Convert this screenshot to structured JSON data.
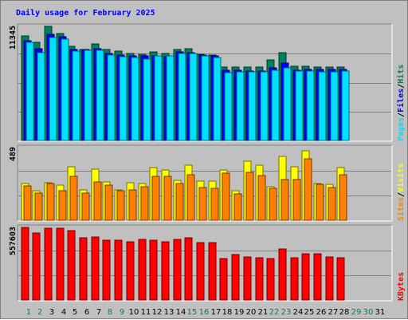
{
  "chart_data": {
    "type": "bar",
    "title": "Daily usage for February 2025",
    "categories": [
      "1",
      "2",
      "3",
      "4",
      "5",
      "6",
      "7",
      "8",
      "9",
      "10",
      "11",
      "12",
      "13",
      "14",
      "15",
      "16",
      "17",
      "18",
      "19",
      "20",
      "21",
      "22",
      "23",
      "24",
      "25",
      "26",
      "27",
      "28",
      "29",
      "30",
      "31"
    ],
    "weekend_days": [
      "1",
      "2",
      "8",
      "9",
      "15",
      "16",
      "22",
      "23",
      "29",
      "30"
    ],
    "panels": [
      {
        "name": "hits_files_pages",
        "ymax_label": "11345",
        "ymax": 11345,
        "axis_labels": [
          "Hits",
          "Files",
          "Pages"
        ],
        "series": [
          {
            "name": "Hits",
            "color": "#00805c",
            "values": [
              10370,
              9730,
              11345,
              10650,
              9360,
              9070,
              9610,
              9040,
              8860,
              8620,
              8600,
              8800,
              8660,
              9040,
              9160,
              8560,
              8480,
              7310,
              7280,
              7280,
              7290,
              8040,
              8740,
              7410,
              7350,
              7300,
              7280,
              7280,
              null,
              null,
              null
            ]
          },
          {
            "name": "Files",
            "color": "#0000ff",
            "values": [
              9950,
              9110,
              10580,
              10280,
              9080,
              9020,
              9120,
              8670,
              8520,
              8400,
              8390,
              8410,
              8360,
              8800,
              8730,
              8450,
              8420,
              6980,
              6980,
              6930,
              6900,
              7190,
              7700,
              7010,
              7100,
              7080,
              7080,
              7060,
              null,
              null,
              null
            ]
          },
          {
            "name": "Pages",
            "color": "#00e0ff",
            "values": [
              9750,
              8700,
              10210,
              10040,
              8900,
              8930,
              8950,
              8510,
              8350,
              8220,
              8060,
              8390,
              8420,
              8630,
              8620,
              8380,
              8240,
              6780,
              6800,
              6800,
              6810,
              7000,
              7190,
              6890,
              6870,
              6850,
              6860,
              6870,
              null,
              null,
              null
            ]
          }
        ]
      },
      {
        "name": "visits_sites",
        "ymax_label": "489",
        "ymax": 489,
        "axis_labels": [
          "Visits",
          "Sites"
        ],
        "series": [
          {
            "name": "Visits",
            "color": "#ffff00",
            "values": [
              248,
              200,
              254,
              239,
              360,
              204,
              342,
              258,
              205,
              250,
              246,
              352,
              338,
              270,
              372,
              264,
              262,
              341,
              199,
              395,
              369,
              227,
              432,
              359,
              470,
              249,
              242,
              355,
              null,
              null,
              null
            ]
          },
          {
            "name": "Sites",
            "color": "#ff8000",
            "values": [
              230,
              185,
              248,
              198,
              298,
              183,
              257,
              237,
              198,
              205,
              224,
              297,
              294,
              246,
              306,
              218,
              213,
              319,
              178,
              320,
              299,
              215,
              272,
              275,
              413,
              243,
              223,
              304,
              null,
              null,
              null
            ]
          }
        ]
      },
      {
        "name": "kbytes",
        "ymax_label": "557603",
        "ymax": 557603,
        "axis_labels": [
          "KBytes"
        ],
        "series": [
          {
            "name": "KBytes",
            "color": "#ff0000",
            "values": [
              557600,
              512200,
              554000,
              554000,
              530600,
              479700,
              481500,
              461500,
              461500,
              448800,
              463600,
              462300,
              448600,
              463600,
              477300,
              443700,
              439900,
              316100,
              346900,
              331800,
              326600,
              318500,
              389300,
              322200,
              357700,
              354600,
              330100,
              324100,
              null,
              null,
              null
            ]
          }
        ]
      }
    ]
  }
}
